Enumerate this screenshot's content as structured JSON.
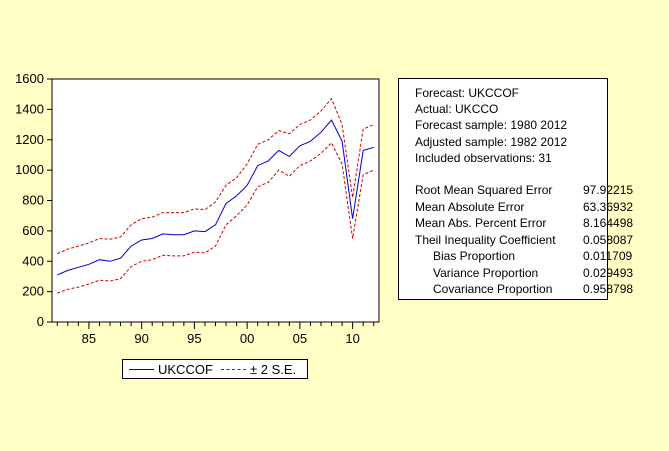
{
  "chart_data": {
    "type": "line",
    "title": "",
    "xlabel": "",
    "ylabel": "",
    "x": [
      1982,
      1983,
      1984,
      1985,
      1986,
      1987,
      1988,
      1989,
      1990,
      1991,
      1992,
      1993,
      1994,
      1995,
      1996,
      1997,
      1998,
      1999,
      2000,
      2001,
      2002,
      2003,
      2004,
      2005,
      2006,
      2007,
      2008,
      2009,
      2010,
      2011,
      2012
    ],
    "xlim": [
      1981.5,
      2012.5
    ],
    "ylim": [
      0,
      1600
    ],
    "y_ticks": [
      0,
      200,
      400,
      600,
      800,
      1000,
      1200,
      1400,
      1600
    ],
    "y_tick_labels": [
      "0",
      "200",
      "400",
      "600",
      "800",
      "1000",
      "1200",
      "1400",
      "1600"
    ],
    "x_ticks": [
      1985,
      1990,
      1995,
      2000,
      2005,
      2010
    ],
    "x_tick_labels": [
      "85",
      "90",
      "95",
      "00",
      "05",
      "10"
    ],
    "grid": false,
    "legend_position": "bottom",
    "series": [
      {
        "name": "UKCCOF",
        "color": "#0000cc",
        "style": "solid",
        "values": [
          310,
          340,
          360,
          380,
          410,
          400,
          420,
          500,
          540,
          550,
          580,
          575,
          575,
          600,
          595,
          640,
          780,
          830,
          900,
          1030,
          1060,
          1130,
          1090,
          1160,
          1190,
          1250,
          1330,
          1190,
          680,
          1130,
          1150
        ]
      },
      {
        "name": "± 2 S.E.",
        "color": "#cc0000",
        "style": "dashed",
        "values": [
          450,
          480,
          500,
          520,
          550,
          545,
          560,
          640,
          680,
          690,
          720,
          720,
          720,
          745,
          740,
          790,
          900,
          950,
          1040,
          1170,
          1200,
          1260,
          1240,
          1300,
          1330,
          1390,
          1470,
          1300,
          820,
          1270,
          1300
        ]
      },
      {
        "color": "#cc0000",
        "style": "dashed",
        "values": [
          190,
          215,
          230,
          250,
          275,
          270,
          285,
          365,
          400,
          410,
          440,
          435,
          435,
          460,
          455,
          500,
          640,
          700,
          770,
          890,
          920,
          1000,
          960,
          1030,
          1060,
          1110,
          1180,
          1040,
          550,
          970,
          1000
        ]
      }
    ]
  },
  "legend": {
    "items": [
      {
        "label": "UKCCOF",
        "color": "#0000cc",
        "style": "solid"
      },
      {
        "label": "± 2 S.E.",
        "color": "#cc0000",
        "style": "dashed"
      }
    ]
  },
  "forecast_info": {
    "lines": [
      "Forecast: UKCCOF",
      "Actual: UKCCO",
      "Forecast sample: 1980 2012",
      "Adjusted sample: 1982 2012",
      "Included observations: 31"
    ],
    "stats": [
      {
        "label": "Root Mean Squared Error",
        "value": "97.92215",
        "indent": false
      },
      {
        "label": "Mean Absolute Error",
        "value": "63.36932",
        "indent": false
      },
      {
        "label": "Mean Abs. Percent Error",
        "value": "8.164498",
        "indent": false
      },
      {
        "label": "Theil Inequality Coefficient",
        "value": "0.058087",
        "indent": false
      },
      {
        "label": "Bias Proportion",
        "value": "0.011709",
        "indent": true
      },
      {
        "label": "Variance Proportion",
        "value": "0.029493",
        "indent": true
      },
      {
        "label": "Covariance Proportion",
        "value": "0.958798",
        "indent": true
      }
    ]
  }
}
